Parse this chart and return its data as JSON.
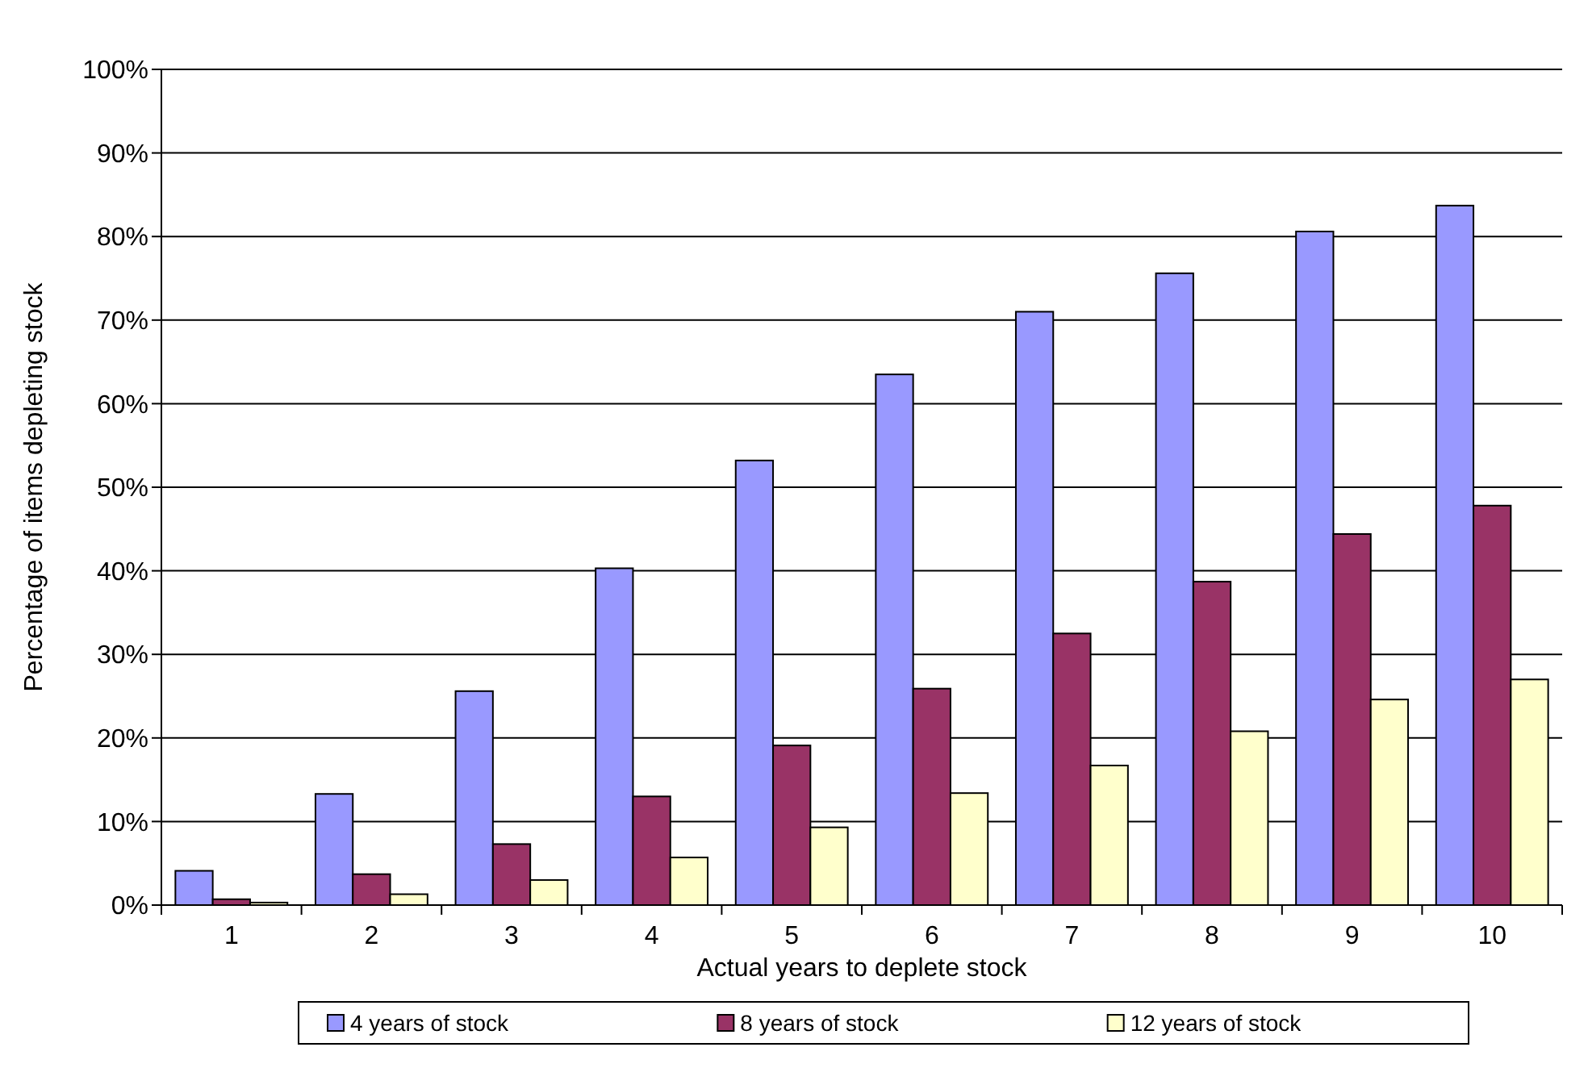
{
  "chart_data": {
    "type": "bar",
    "xlabel": "Actual years to deplete stock",
    "ylabel": "Percentage of items depleting stock",
    "categories": [
      "1",
      "2",
      "3",
      "4",
      "5",
      "6",
      "7",
      "8",
      "9",
      "10"
    ],
    "series": [
      {
        "name": "4 years of stock",
        "color": "#9999ff",
        "values": [
          4.1,
          13.3,
          25.6,
          40.3,
          53.2,
          63.5,
          71.0,
          75.6,
          80.6,
          83.7
        ]
      },
      {
        "name": "8 years of stock",
        "color": "#993366",
        "values": [
          0.7,
          3.7,
          7.3,
          13.0,
          19.1,
          25.9,
          32.5,
          38.7,
          44.4,
          47.8
        ]
      },
      {
        "name": "12 years of stock",
        "color": "#ffffcc",
        "values": [
          0.3,
          1.3,
          3.0,
          5.7,
          9.3,
          13.4,
          16.7,
          20.8,
          24.6,
          27.0
        ]
      }
    ],
    "ylim": [
      0,
      100
    ],
    "yticks": [
      {
        "value": 0,
        "label": "0%"
      },
      {
        "value": 10,
        "label": "10%"
      },
      {
        "value": 20,
        "label": "20%"
      },
      {
        "value": 30,
        "label": "30%"
      },
      {
        "value": 40,
        "label": "40%"
      },
      {
        "value": 50,
        "label": "50%"
      },
      {
        "value": 60,
        "label": "60%"
      },
      {
        "value": 70,
        "label": "70%"
      },
      {
        "value": 80,
        "label": "80%"
      },
      {
        "value": 90,
        "label": "90%"
      },
      {
        "value": 100,
        "label": "100%"
      }
    ],
    "grid": "y",
    "legend": "bottom"
  }
}
